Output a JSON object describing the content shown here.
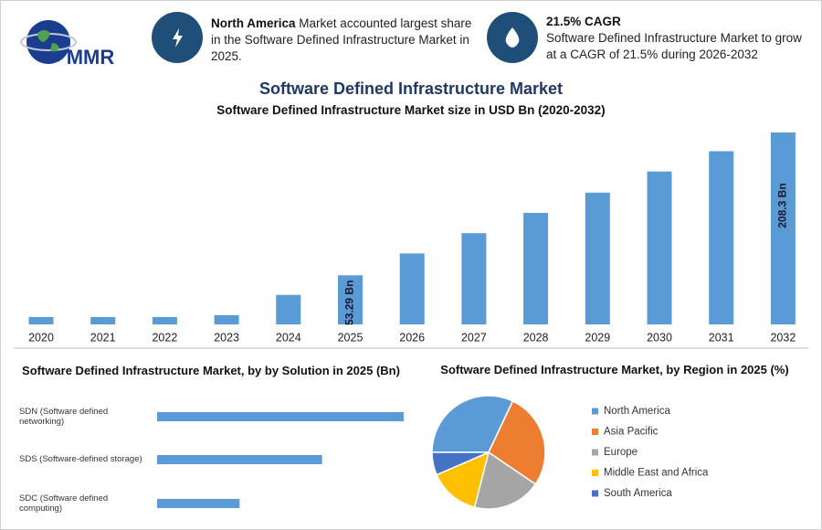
{
  "header": {
    "logo": "MMR",
    "info_1": {
      "highlight": "North America",
      "text": "Market accounted largest share in the Software Defined Infrastructure Market in 2025."
    },
    "info_2": {
      "highlight": "21.5% CAGR",
      "text": "Software Defined Infrastructure Market to grow at a CAGR of 21.5% during 2026-2032"
    }
  },
  "title": "Software Defined Infrastructure Market",
  "chart_data": [
    {
      "type": "bar",
      "title": "Software Defined Infrastructure Market size in USD Bn (2020-2032)",
      "categories": [
        "2020",
        "2021",
        "2022",
        "2023",
        "2024",
        "2025",
        "2026",
        "2027",
        "2028",
        "2029",
        "2030",
        "2031",
        "2032"
      ],
      "values": [
        8,
        8,
        8,
        10,
        32,
        53.29,
        77,
        99,
        121,
        143,
        166,
        188,
        208.3
      ],
      "value_labels": [
        null,
        null,
        null,
        null,
        null,
        "53.29 Bn",
        null,
        null,
        null,
        null,
        null,
        null,
        "208.3 Bn"
      ],
      "color": "#5b9bd5"
    },
    {
      "type": "hbar",
      "title": "Software Defined Infrastructure Market, by by Solution in 2025 (Bn)",
      "categories": [
        "SDN (Software defined networking)",
        "SDS (Software-defined storage)",
        "SDC (Software defined computing)"
      ],
      "values": [
        26.6,
        17.8,
        8.9
      ],
      "color": "#5b9bd5"
    },
    {
      "type": "pie",
      "title": "Software Defined Infrastructure Market, by Region in 2025 (%)",
      "categories": [
        "North America",
        "Asia Pacific",
        "Europe",
        "Middle East and Africa",
        "South America"
      ],
      "values": [
        32,
        27.5,
        19.5,
        14.5,
        6.5
      ],
      "colors": [
        "#5b9bd5",
        "#ed7d31",
        "#a5a5a5",
        "#ffc000",
        "#4472c4"
      ]
    }
  ]
}
